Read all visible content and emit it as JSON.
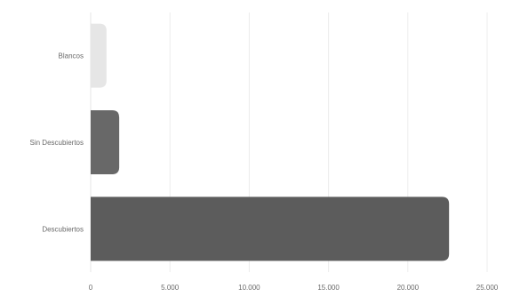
{
  "chart_data": {
    "type": "bar",
    "orientation": "horizontal",
    "title": "",
    "xlabel": "",
    "ylabel": "",
    "categories": [
      "Blancos",
      "Sin Descubiertos",
      "Descubiertos"
    ],
    "values": [
      1000,
      1800,
      22600
    ],
    "bar_colors": [
      "#e6e6e6",
      "#686868",
      "#5c5c5c"
    ],
    "xlim": [
      0,
      25000
    ],
    "x_ticks": [
      0,
      5000,
      10000,
      15000,
      20000,
      25000
    ],
    "x_tick_labels": [
      "0",
      "5.000",
      "10.000",
      "15.000",
      "20.000",
      "25.000"
    ],
    "grid": true,
    "legend": "none"
  }
}
